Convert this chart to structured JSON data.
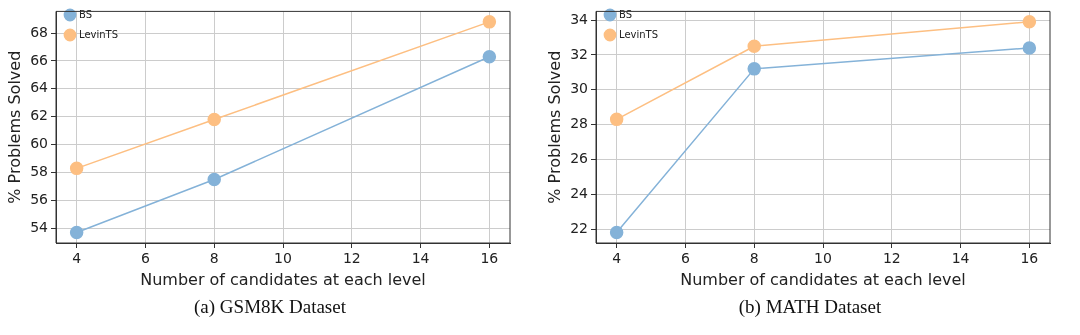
{
  "chart_data": [
    {
      "type": "line",
      "xlabel": "Number of candidates at each level",
      "ylabel": "% Problems Solved",
      "x": [
        4,
        8,
        16
      ],
      "series": [
        {
          "name": "BS",
          "color": "#84b2d8",
          "values": [
            53.7,
            57.5,
            66.3
          ]
        },
        {
          "name": "LevinTS",
          "color": "#fdbf82",
          "values": [
            58.3,
            61.8,
            68.8
          ]
        }
      ],
      "xlim": [
        3.4,
        16.6
      ],
      "xticks": [
        4,
        6,
        8,
        10,
        12,
        14,
        16
      ],
      "ylim": [
        52.95,
        69.55
      ],
      "yticks": [
        54,
        56,
        58,
        60,
        62,
        64,
        66,
        68
      ],
      "grid": true,
      "legend": "top left",
      "marker": "circle",
      "line_style": "solid",
      "annotations": [
        "(a) GSM8K Dataset"
      ]
    },
    {
      "type": "line",
      "xlabel": "Number of candidates at each level",
      "ylabel": "% Problems Solved",
      "x": [
        4,
        8,
        16
      ],
      "series": [
        {
          "name": "BS",
          "color": "#84b2d8",
          "values": [
            21.8,
            31.2,
            32.4
          ]
        },
        {
          "name": "LevinTS",
          "color": "#fdbf82",
          "values": [
            28.3,
            32.5,
            33.9
          ]
        }
      ],
      "xlim": [
        3.4,
        16.6
      ],
      "xticks": [
        4,
        6,
        8,
        10,
        12,
        14,
        16
      ],
      "ylim": [
        21.2,
        34.5
      ],
      "yticks": [
        22,
        24,
        26,
        28,
        30,
        32,
        34
      ],
      "grid": true,
      "legend": "top left",
      "marker": "circle",
      "line_style": "solid",
      "annotations": [
        "(b) MATH Dataset"
      ]
    }
  ]
}
